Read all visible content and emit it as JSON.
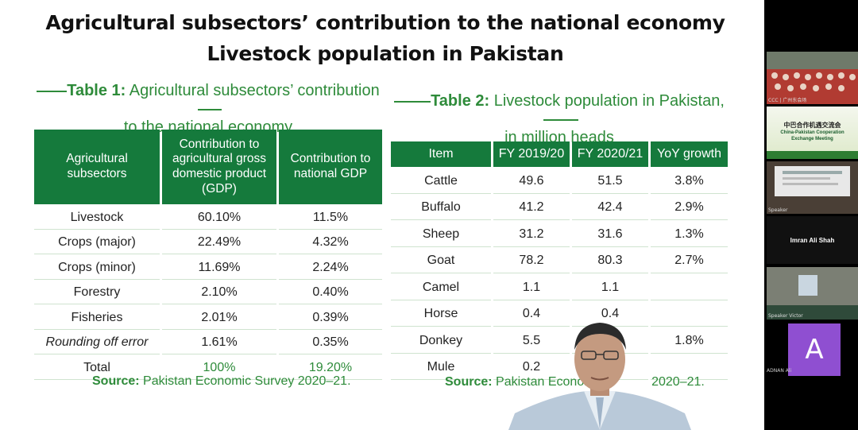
{
  "slide": {
    "title_line1": "Agricultural subsectors’ contribution  to the national economy",
    "title_line2": "Livestock population in Pakistan",
    "table1": {
      "caption_bold": "Table 1:",
      "caption_text1": "Agricultural subsectors’ contribution",
      "caption_text2": "to the national economy",
      "headers": [
        "Agricultural subsectors",
        "Contribution to agricultural gross domestic product (GDP)",
        "Contribution to national GDP"
      ],
      "rows": [
        [
          "Livestock",
          "60.10%",
          "11.5%"
        ],
        [
          "Crops (major)",
          "22.49%",
          "4.32%"
        ],
        [
          "Crops (minor)",
          "11.69%",
          "2.24%"
        ],
        [
          "Forestry",
          "2.10%",
          "0.40%"
        ],
        [
          "Fisheries",
          "2.01%",
          "0.39%"
        ],
        [
          "Rounding off error",
          "1.61%",
          "0.35%"
        ],
        [
          "Total",
          "100%",
          "19.20%"
        ]
      ],
      "source_label": "Source:",
      "source_text": "Pakistan Economic Survey 2020–21."
    },
    "table2": {
      "caption_bold": "Table 2:",
      "caption_text1": "Livestock population in Pakistan,",
      "caption_text2": "in million heads",
      "headers": [
        "Item",
        "FY 2019/20",
        "FY 2020/21",
        "YoY growth"
      ],
      "rows": [
        [
          "Cattle",
          "49.6",
          "51.5",
          "3.8%"
        ],
        [
          "Buffalo",
          "41.2",
          "42.4",
          "2.9%"
        ],
        [
          "Sheep",
          "31.2",
          "31.6",
          "1.3%"
        ],
        [
          "Goat",
          "78.2",
          "80.3",
          "2.7%"
        ],
        [
          "Camel",
          "1.1",
          "1.1",
          ""
        ],
        [
          "Horse",
          "0.4",
          "0.4",
          ""
        ],
        [
          "Donkey",
          "5.5",
          "",
          "1.8%"
        ],
        [
          "Mule",
          "0.2",
          "",
          ""
        ]
      ],
      "source_label": "Source:",
      "source_text1": "Pakistan Economic",
      "source_text2": "2020–21."
    }
  },
  "sidebar": {
    "tile1_label": "CCC | 广州东会场",
    "tile2_cn": "中巴合作机遇交流会",
    "tile2_en1": "China-Pakistan Cooperation",
    "tile2_en2": "Exchange Meeting",
    "tile3_label": "Speaker",
    "tile4_name": "Imran Ali Shah",
    "tile5_label": "Speaker Victor",
    "tile6_initial": "A",
    "tile6_label": "ADNAN Ali"
  },
  "colors": {
    "accent_green": "#157a3c",
    "text_green": "#2e8b3a",
    "avatar_purple": "#8f4fd1"
  }
}
